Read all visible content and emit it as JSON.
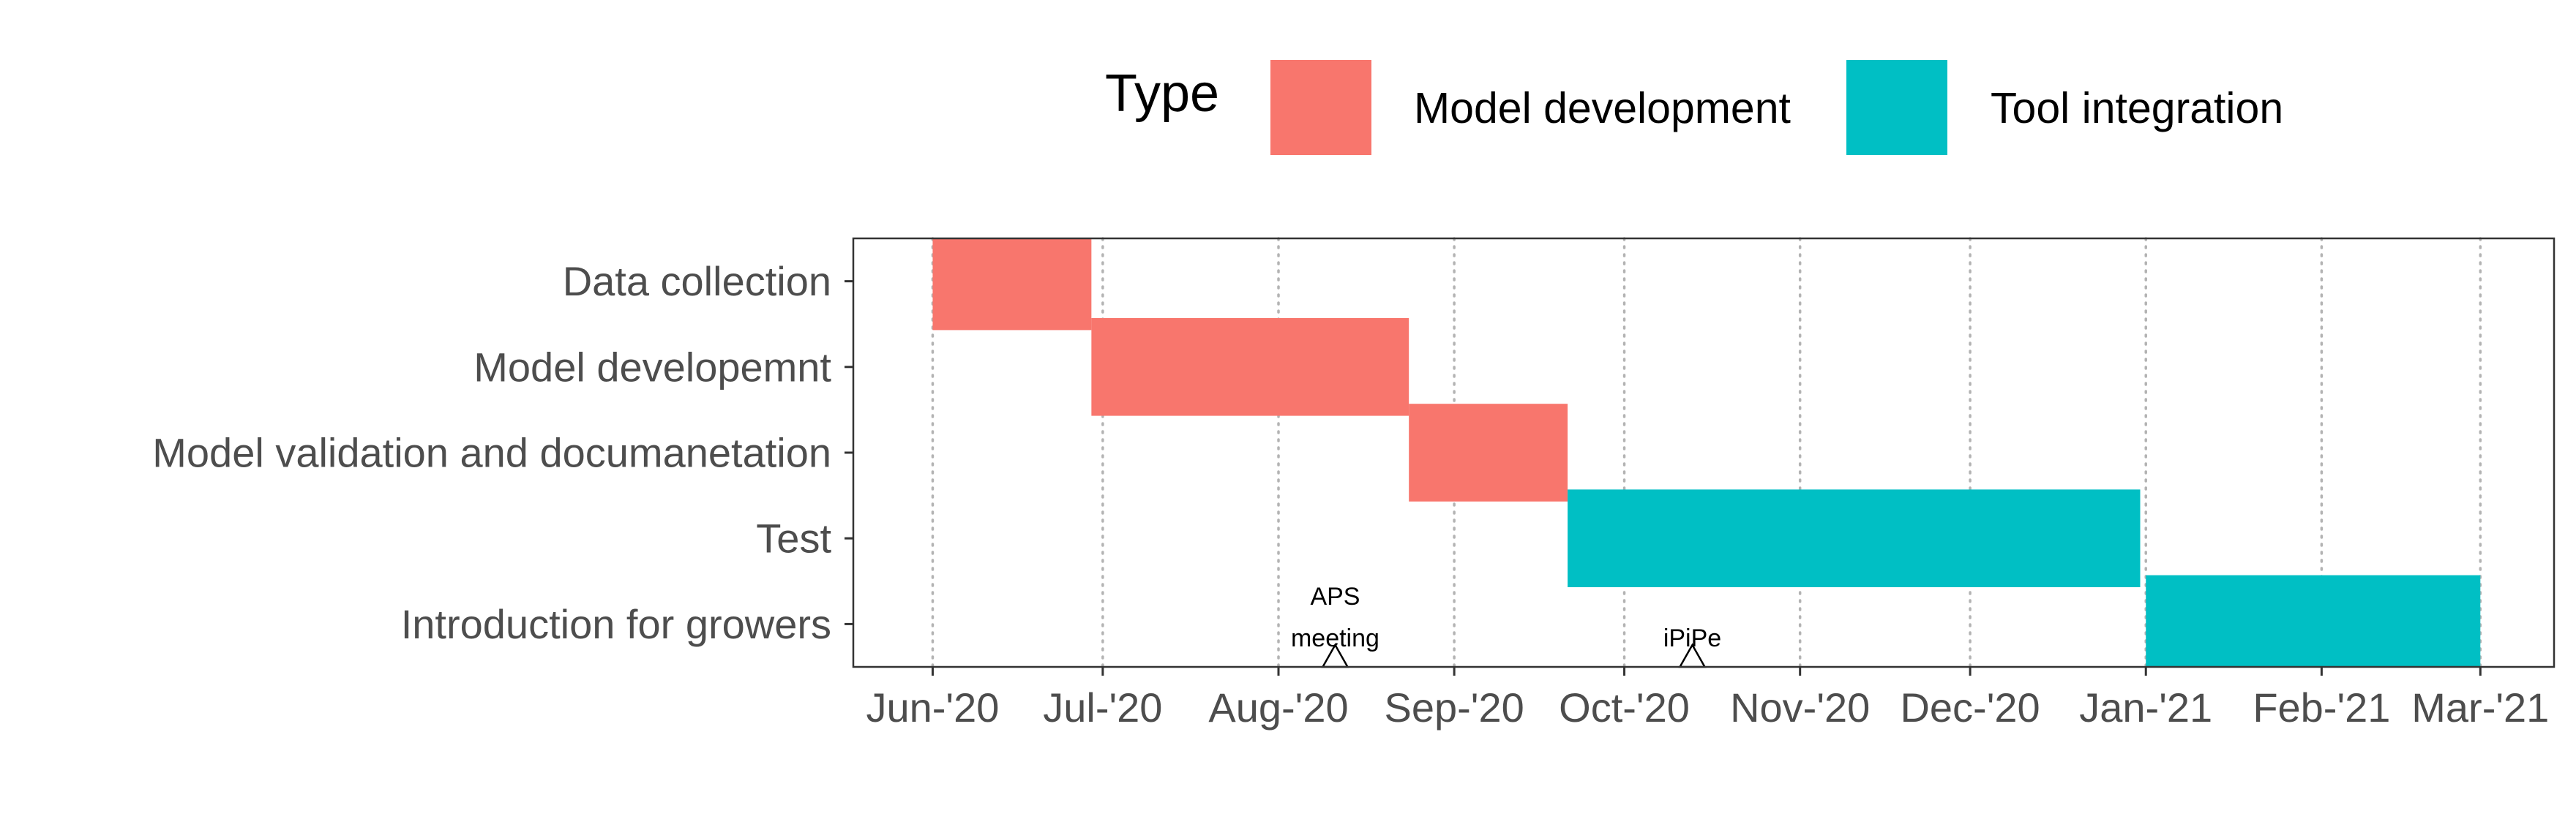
{
  "chart_data": {
    "type": "gantt",
    "legend": {
      "title": "Type",
      "position": "top",
      "entries": [
        {
          "name": "Model development",
          "color": "#F8766D"
        },
        {
          "name": "Tool integration",
          "color": "#00BFC4"
        }
      ]
    },
    "y_categories": [
      "Data collection",
      "Model developemnt",
      "Model validation and documanetation",
      "Test",
      "Introduction for growers"
    ],
    "x_tick_labels": [
      "Jun-'20",
      "Jul-'20",
      "Aug-'20",
      "Sep-'20",
      "Oct-'20",
      "Nov-'20",
      "Dec-'20",
      "Jan-'21",
      "Feb-'21",
      "Mar-'21"
    ],
    "x_tick_dates": [
      "2020-06-01",
      "2020-07-01",
      "2020-08-01",
      "2020-09-01",
      "2020-10-01",
      "2020-11-01",
      "2020-12-01",
      "2021-01-01",
      "2021-02-01",
      "2021-03-01"
    ],
    "xlim": [
      "2020-05-18",
      "2021-03-14"
    ],
    "grid": "vertical dotted at month ticks",
    "tasks": [
      {
        "task": "Data collection",
        "type": "Model development",
        "start": "2020-06-01",
        "end": "2020-06-29"
      },
      {
        "task": "Model developemnt",
        "type": "Model development",
        "start": "2020-06-29",
        "end": "2020-08-24"
      },
      {
        "task": "Model validation and documanetation",
        "type": "Model development",
        "start": "2020-08-24",
        "end": "2020-09-21"
      },
      {
        "task": "Test",
        "type": "Tool integration",
        "start": "2020-09-21",
        "end": "2020-12-31"
      },
      {
        "task": "Introduction for growers",
        "type": "Tool integration",
        "start": "2021-01-01",
        "end": "2021-03-01"
      }
    ],
    "annotations": [
      {
        "lines": [
          "APS",
          "meeting"
        ],
        "date": "2020-08-11"
      },
      {
        "lines": [
          "iPiPe"
        ],
        "date": "2020-10-13"
      }
    ]
  }
}
